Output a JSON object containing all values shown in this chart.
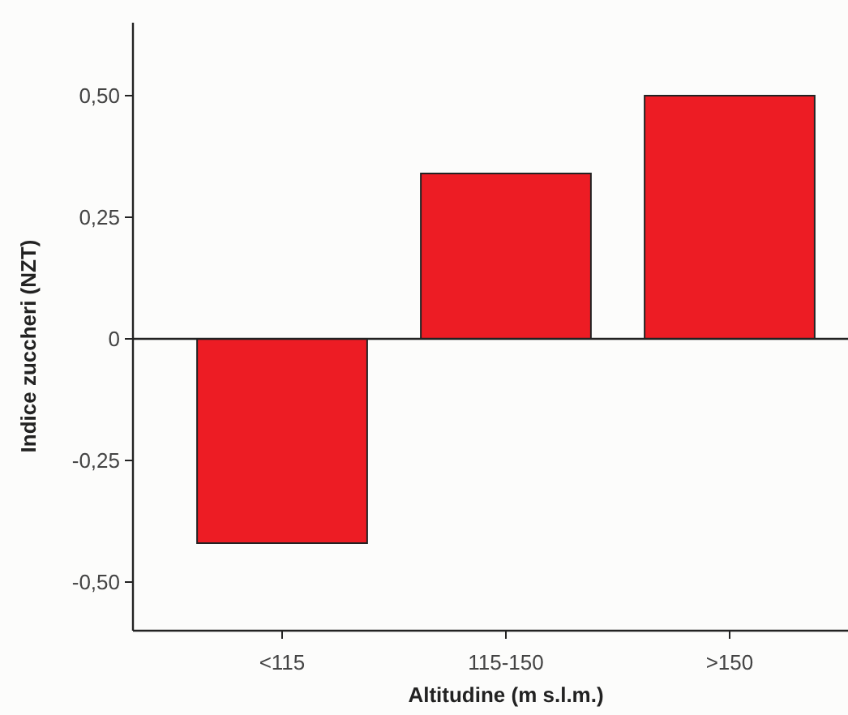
{
  "chart_data": {
    "type": "bar",
    "xlabel": "Altitudine (m s.l.m.)",
    "ylabel": "Indice zuccheri (NZT)",
    "categories": [
      "<115",
      "115-150",
      ">150"
    ],
    "values": [
      -0.42,
      0.34,
      0.5
    ],
    "color": "#ed1c24",
    "ylim": [
      -0.6,
      0.65
    ],
    "yticks": [
      {
        "value": -0.5,
        "label": "-0,50"
      },
      {
        "value": -0.25,
        "label": "-0,25"
      },
      0,
      {
        "value": 0.25,
        "label": "0,25"
      },
      {
        "value": 0.5,
        "label": "0,50"
      }
    ]
  }
}
